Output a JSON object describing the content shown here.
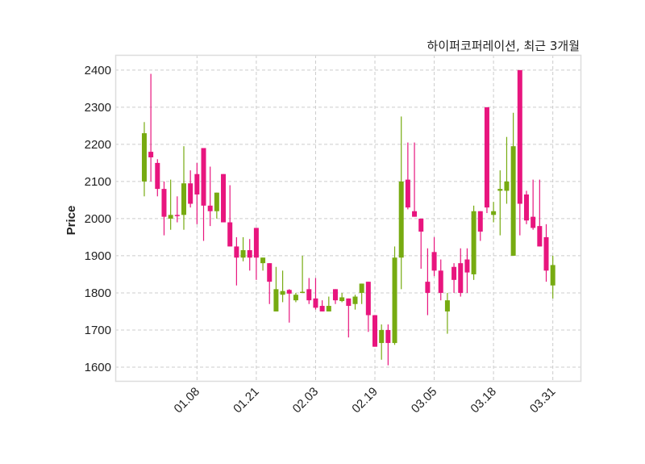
{
  "chart_data": {
    "type": "candlestick",
    "title": "하이퍼코퍼레이션, 최근 3개월",
    "xlabel": "",
    "ylabel": "Price",
    "ylim": [
      1563,
      2441
    ],
    "xlim": [
      -4.4,
      66.2
    ],
    "grid": true,
    "yticks": [
      1600,
      1700,
      1800,
      1900,
      2000,
      2100,
      2200,
      2300,
      2400
    ],
    "xticks": [
      {
        "index": 8,
        "label": "01.08"
      },
      {
        "index": 17,
        "label": "01.21"
      },
      {
        "index": 26,
        "label": "02.03"
      },
      {
        "index": 35,
        "label": "02.19"
      },
      {
        "index": 44,
        "label": "03.05"
      },
      {
        "index": 53,
        "label": "03.18"
      },
      {
        "index": 62,
        "label": "03.31"
      }
    ],
    "colors": {
      "up": "#77ab11",
      "down": "#e8157e",
      "grid": "#cccccc",
      "frame": "#dddddd"
    },
    "ohlc_fields": [
      "open",
      "high",
      "low",
      "close"
    ],
    "candles": [
      [
        2100,
        2260,
        2060,
        2230
      ],
      [
        2180,
        2390,
        2100,
        2165
      ],
      [
        2150,
        2160,
        2060,
        2080
      ],
      [
        2080,
        2100,
        1955,
        2005
      ],
      [
        2000,
        2105,
        1970,
        2010
      ],
      [
        2010,
        2060,
        1990,
        2008
      ],
      [
        2010,
        2195,
        1970,
        2095
      ],
      [
        2095,
        2130,
        2030,
        2040
      ],
      [
        2120,
        2150,
        1985,
        2065
      ],
      [
        2190,
        2190,
        1940,
        2035
      ],
      [
        2035,
        2140,
        1980,
        2020
      ],
      [
        2020,
        2070,
        2000,
        2070
      ],
      [
        2120,
        2120,
        1990,
        1990
      ],
      [
        1990,
        2090,
        1925,
        1925
      ],
      [
        1925,
        1950,
        1820,
        1895
      ],
      [
        1895,
        1950,
        1885,
        1915
      ],
      [
        1915,
        1945,
        1860,
        1895
      ],
      [
        1975,
        1975,
        1835,
        1895
      ],
      [
        1880,
        1895,
        1860,
        1895
      ],
      [
        1880,
        1880,
        1770,
        1830
      ],
      [
        1750,
        1870,
        1750,
        1810
      ],
      [
        1795,
        1860,
        1775,
        1805
      ],
      [
        1808,
        1810,
        1720,
        1798
      ],
      [
        1780,
        1800,
        1775,
        1795
      ],
      [
        1800,
        1900,
        1800,
        1803
      ],
      [
        1810,
        1840,
        1770,
        1780
      ],
      [
        1785,
        1840,
        1755,
        1760
      ],
      [
        1765,
        1780,
        1750,
        1750
      ],
      [
        1750,
        1790,
        1750,
        1765
      ],
      [
        1810,
        1810,
        1770,
        1780
      ],
      [
        1778,
        1800,
        1775,
        1788
      ],
      [
        1785,
        1785,
        1680,
        1765
      ],
      [
        1770,
        1795,
        1755,
        1790
      ],
      [
        1800,
        1825,
        1770,
        1825
      ],
      [
        1830,
        1830,
        1695,
        1740
      ],
      [
        1740,
        1740,
        1655,
        1655
      ],
      [
        1665,
        1715,
        1620,
        1700
      ],
      [
        1700,
        1715,
        1605,
        1665
      ],
      [
        1665,
        1925,
        1660,
        1895
      ],
      [
        1895,
        2275,
        1810,
        2100
      ],
      [
        2105,
        2205,
        2025,
        2030
      ],
      [
        2020,
        2205,
        2005,
        2005
      ],
      [
        2000,
        2000,
        1865,
        1965
      ],
      [
        1830,
        1920,
        1740,
        1800
      ],
      [
        1910,
        1950,
        1845,
        1860
      ],
      [
        1860,
        1890,
        1780,
        1800
      ],
      [
        1750,
        1800,
        1690,
        1780
      ],
      [
        1870,
        1880,
        1800,
        1835
      ],
      [
        1880,
        1920,
        1790,
        1800
      ],
      [
        1890,
        1920,
        1800,
        1855
      ],
      [
        1850,
        2035,
        1835,
        2020
      ],
      [
        2020,
        2020,
        1940,
        1965
      ],
      [
        2300,
        2300,
        2015,
        2030
      ],
      [
        2010,
        2045,
        1990,
        2020
      ],
      [
        2075,
        2130,
        1955,
        2080
      ],
      [
        2075,
        2220,
        2040,
        2100
      ],
      [
        1900,
        2285,
        1900,
        2195
      ],
      [
        2400,
        2400,
        1955,
        2040
      ],
      [
        2065,
        2075,
        1985,
        1995
      ],
      [
        2005,
        2105,
        1970,
        1975
      ],
      [
        1980,
        2105,
        1925,
        1925
      ],
      [
        1950,
        1985,
        1830,
        1860
      ],
      [
        1820,
        1900,
        1785,
        1875
      ]
    ]
  }
}
